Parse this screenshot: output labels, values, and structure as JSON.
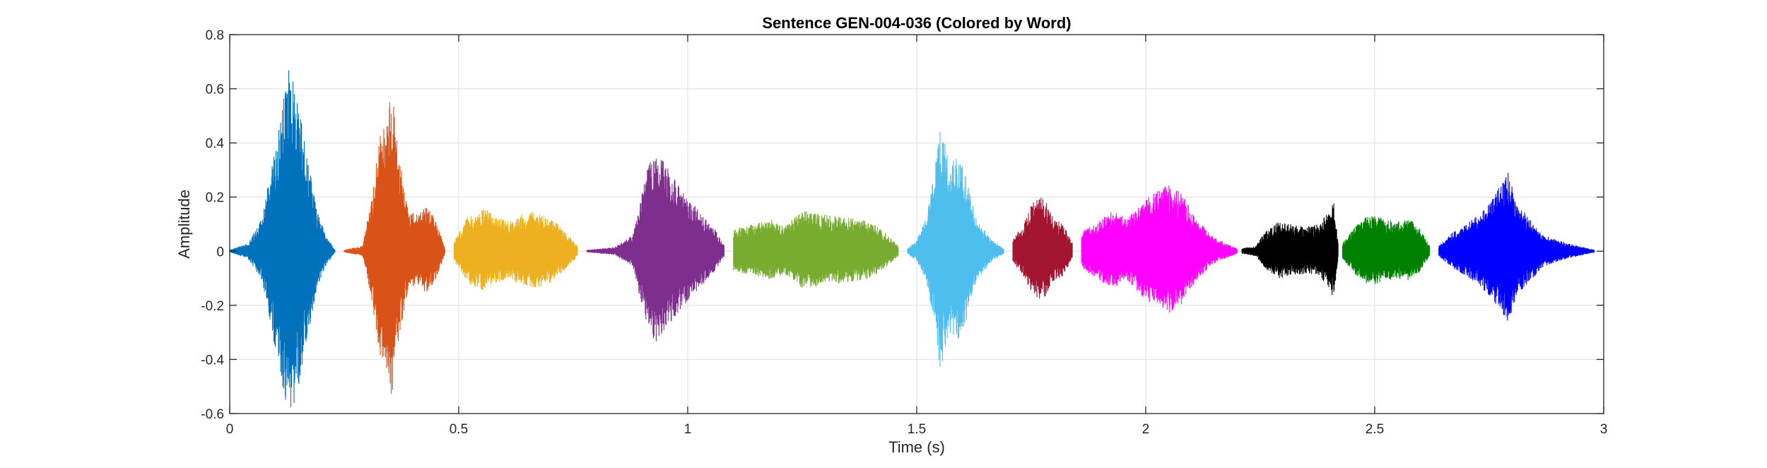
{
  "chart_data": {
    "type": "line",
    "title": "Sentence GEN-004-036 (Colored by Word)",
    "xlabel": "Time (s)",
    "ylabel": "Amplitude",
    "xlim": [
      0,
      3
    ],
    "ylim": [
      -0.6,
      0.8
    ],
    "xticks": [
      0,
      0.5,
      1,
      1.5,
      2,
      2.5,
      3
    ],
    "xtick_labels": [
      "0",
      "0.5",
      "1",
      "1.5",
      "2",
      "2.5",
      "3"
    ],
    "yticks": [
      -0.6,
      -0.4,
      -0.2,
      0,
      0.2,
      0.4,
      0.6,
      0.8
    ],
    "ytick_labels": [
      "-0.6",
      "-0.4",
      "-0.2",
      "0",
      "0.2",
      "0.4",
      "0.6",
      "0.8"
    ],
    "grid": true,
    "legend": "none",
    "series": [
      {
        "color": "#0072BD",
        "t_start": 0.0,
        "t_end": 0.23,
        "envelope": [
          [
            0.0,
            0.005
          ],
          [
            0.04,
            0.03
          ],
          [
            0.07,
            0.12
          ],
          [
            0.09,
            0.3
          ],
          [
            0.11,
            0.5
          ],
          [
            0.13,
            0.68
          ],
          [
            0.15,
            0.55
          ],
          [
            0.17,
            0.35
          ],
          [
            0.19,
            0.15
          ],
          [
            0.21,
            0.06
          ],
          [
            0.23,
            0.005
          ]
        ]
      },
      {
        "color": "#D95319",
        "t_start": 0.25,
        "t_end": 0.47,
        "envelope": [
          [
            0.25,
            0.005
          ],
          [
            0.29,
            0.02
          ],
          [
            0.31,
            0.2
          ],
          [
            0.33,
            0.45
          ],
          [
            0.355,
            0.59
          ],
          [
            0.37,
            0.35
          ],
          [
            0.39,
            0.15
          ],
          [
            0.41,
            0.14
          ],
          [
            0.43,
            0.17
          ],
          [
            0.45,
            0.12
          ],
          [
            0.47,
            0.01
          ]
        ]
      },
      {
        "color": "#EDB120",
        "t_start": 0.49,
        "t_end": 0.76,
        "envelope": [
          [
            0.49,
            0.04
          ],
          [
            0.52,
            0.13
          ],
          [
            0.555,
            0.16
          ],
          [
            0.58,
            0.13
          ],
          [
            0.61,
            0.11
          ],
          [
            0.64,
            0.14
          ],
          [
            0.67,
            0.15
          ],
          [
            0.7,
            0.13
          ],
          [
            0.73,
            0.08
          ],
          [
            0.76,
            0.02
          ]
        ]
      },
      {
        "color": "#7E2F8E",
        "t_start": 0.78,
        "t_end": 1.08,
        "envelope": [
          [
            0.78,
            0.005
          ],
          [
            0.84,
            0.015
          ],
          [
            0.88,
            0.06
          ],
          [
            0.91,
            0.3
          ],
          [
            0.93,
            0.37
          ],
          [
            0.95,
            0.33
          ],
          [
            0.98,
            0.25
          ],
          [
            1.01,
            0.18
          ],
          [
            1.04,
            0.12
          ],
          [
            1.06,
            0.08
          ],
          [
            1.08,
            0.02
          ]
        ]
      },
      {
        "color": "#77AC30",
        "t_start": 1.1,
        "t_end": 1.46,
        "envelope": [
          [
            1.1,
            0.08
          ],
          [
            1.14,
            0.1
          ],
          [
            1.18,
            0.12
          ],
          [
            1.21,
            0.09
          ],
          [
            1.25,
            0.15
          ],
          [
            1.29,
            0.14
          ],
          [
            1.33,
            0.13
          ],
          [
            1.37,
            0.12
          ],
          [
            1.4,
            0.11
          ],
          [
            1.43,
            0.07
          ],
          [
            1.46,
            0.02
          ]
        ]
      },
      {
        "color": "#4DBEEE",
        "t_start": 1.48,
        "t_end": 1.69,
        "envelope": [
          [
            1.48,
            0.01
          ],
          [
            1.5,
            0.04
          ],
          [
            1.52,
            0.12
          ],
          [
            1.54,
            0.3
          ],
          [
            1.55,
            0.5
          ],
          [
            1.57,
            0.33
          ],
          [
            1.59,
            0.36
          ],
          [
            1.61,
            0.28
          ],
          [
            1.63,
            0.12
          ],
          [
            1.66,
            0.05
          ],
          [
            1.69,
            0.01
          ]
        ]
      },
      {
        "color": "#A2142F",
        "t_start": 1.71,
        "t_end": 1.84,
        "envelope": [
          [
            1.71,
            0.05
          ],
          [
            1.73,
            0.09
          ],
          [
            1.76,
            0.21
          ],
          [
            1.78,
            0.19
          ],
          [
            1.8,
            0.12
          ],
          [
            1.82,
            0.1
          ],
          [
            1.84,
            0.03
          ]
        ]
      },
      {
        "color": "#FF00FF",
        "t_start": 1.86,
        "t_end": 2.2,
        "envelope": [
          [
            1.86,
            0.07
          ],
          [
            1.9,
            0.12
          ],
          [
            1.93,
            0.15
          ],
          [
            1.96,
            0.12
          ],
          [
            1.99,
            0.18
          ],
          [
            2.02,
            0.22
          ],
          [
            2.05,
            0.25
          ],
          [
            2.08,
            0.21
          ],
          [
            2.11,
            0.12
          ],
          [
            2.15,
            0.05
          ],
          [
            2.2,
            0.01
          ]
        ]
      },
      {
        "color": "#000000",
        "t_start": 2.21,
        "t_end": 2.42,
        "envelope": [
          [
            2.21,
            0.01
          ],
          [
            2.24,
            0.02
          ],
          [
            2.26,
            0.07
          ],
          [
            2.29,
            0.11
          ],
          [
            2.32,
            0.1
          ],
          [
            2.35,
            0.09
          ],
          [
            2.38,
            0.1
          ],
          [
            2.4,
            0.15
          ],
          [
            2.41,
            0.19
          ],
          [
            2.42,
            0.03
          ]
        ]
      },
      {
        "color": "#008000",
        "t_start": 2.43,
        "t_end": 2.62,
        "envelope": [
          [
            2.43,
            0.03
          ],
          [
            2.46,
            0.1
          ],
          [
            2.49,
            0.14
          ],
          [
            2.52,
            0.12
          ],
          [
            2.55,
            0.11
          ],
          [
            2.58,
            0.12
          ],
          [
            2.6,
            0.08
          ],
          [
            2.62,
            0.02
          ]
        ]
      },
      {
        "color": "#0000FF",
        "t_start": 2.64,
        "t_end": 2.98,
        "envelope": [
          [
            2.64,
            0.02
          ],
          [
            2.67,
            0.07
          ],
          [
            2.7,
            0.1
          ],
          [
            2.73,
            0.14
          ],
          [
            2.76,
            0.2
          ],
          [
            2.79,
            0.3
          ],
          [
            2.81,
            0.18
          ],
          [
            2.84,
            0.12
          ],
          [
            2.87,
            0.06
          ],
          [
            2.92,
            0.03
          ],
          [
            2.98,
            0.005
          ]
        ]
      }
    ]
  }
}
